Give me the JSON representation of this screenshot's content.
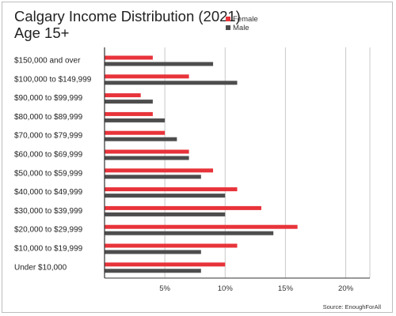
{
  "legend": {
    "female_label": "Female",
    "male_label": "Male"
  },
  "source": "Source:  EnoughForAll",
  "chart_data": {
    "type": "bar",
    "orientation": "horizontal",
    "title_line1": "Calgary Income Distribution (2021)",
    "title_line2": "Age 15+",
    "categories": [
      "$150,000 and over",
      "$100,000 to $149,999",
      "$90,000 to $99,999",
      "$80,000 to $89,999",
      "$70,000 to $79,999",
      "$60,000 to $69,999",
      "$50,000 to $59,999",
      "$40,000 to $49,999",
      "$30,000 to $39,999",
      "$20,000 to $29,999",
      "$10,000 to $19,999",
      "Under $10,000"
    ],
    "series": [
      {
        "name": "Female",
        "color": "#e8333a",
        "values": [
          4,
          7,
          3,
          4,
          5,
          7,
          9,
          11,
          13,
          16,
          11,
          10
        ]
      },
      {
        "name": "Male",
        "color": "#4d4d4d",
        "values": [
          9,
          11,
          4,
          5,
          6,
          7,
          8,
          10,
          10,
          14,
          8,
          8
        ]
      }
    ],
    "xlim": [
      0,
      22
    ],
    "xticks": [
      5,
      10,
      15,
      20
    ],
    "xtick_labels": [
      "5%",
      "10%",
      "15%",
      "20%"
    ],
    "grid": true,
    "legend_position": "top"
  }
}
